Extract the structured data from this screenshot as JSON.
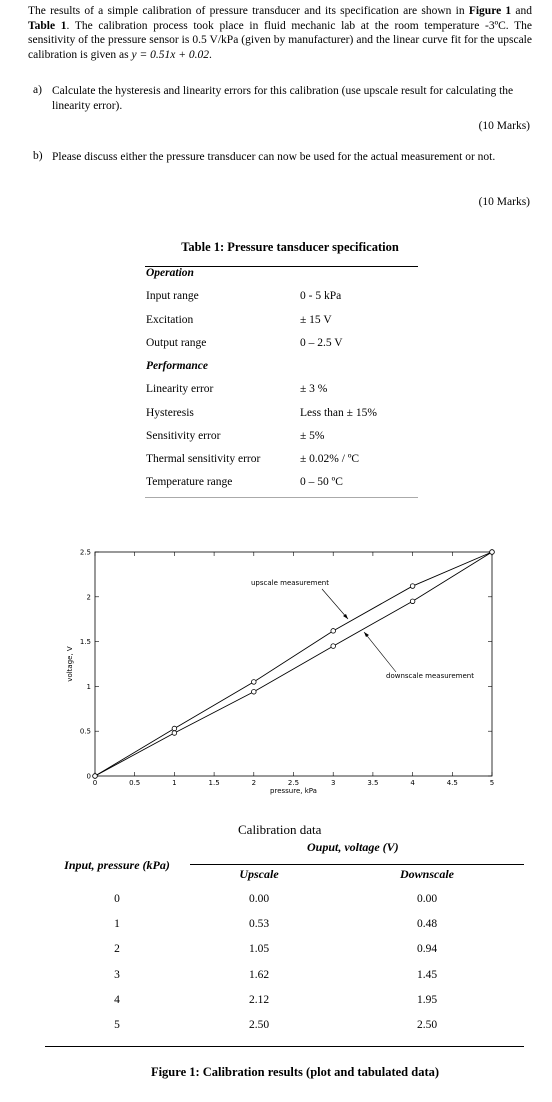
{
  "intro": [
    "The results of a simple calibration of pressure transducer and its specification are shown in ",
    "Figure 1",
    " and ",
    "Table 1",
    ". The calibration process took place in fluid mechanic lab at the room temperature -3ºC. The sensitivity of the pressure sensor is 0.5 V/kPa (given by manufacturer) and the linear curve fit for the upscale calibration is given as ",
    "y = 0.51x + 0.02",
    "."
  ],
  "questions": [
    {
      "label": "a)",
      "text": "Calculate the hysteresis and linearity errors for this calibration (use upscale result for calculating the linearity error).",
      "marks": "(10 Marks)"
    },
    {
      "label": "b)",
      "text": "Please discuss either the pressure transducer can now be used for the actual measurement or not.",
      "marks": "(10 Marks)"
    }
  ],
  "table1": {
    "title": "Table 1: Pressure tansducer specification",
    "sections": [
      {
        "heading": "Operation",
        "rows": [
          [
            "Input range",
            "0 - 5 kPa"
          ],
          [
            "Excitation",
            "± 15 V"
          ],
          [
            "Output range",
            "0 – 2.5 V"
          ]
        ]
      },
      {
        "heading": "Performance",
        "rows": [
          [
            "Linearity error",
            "± 3 %"
          ],
          [
            "Hysteresis",
            "Less than ± 15%"
          ],
          [
            "Sensitivity error",
            "± 5%"
          ],
          [
            "Thermal sensitivity error",
            "± 0.02% / ºC"
          ],
          [
            "Temperature range",
            "0 – 50 ºC"
          ]
        ]
      }
    ]
  },
  "chart_data": {
    "type": "line",
    "x": [
      0,
      1,
      2,
      3,
      4,
      5
    ],
    "series": [
      {
        "name": "upscale",
        "color": "#000000",
        "values": [
          0,
          0.53,
          1.05,
          1.62,
          2.12,
          2.5
        ]
      },
      {
        "name": "downscale",
        "color": "#000000",
        "values": [
          0,
          0.48,
          0.94,
          1.45,
          1.95,
          2.5
        ]
      }
    ],
    "xlabel": "pressure, kPa",
    "ylabel": "voltage, V",
    "xlim": [
      0,
      5
    ],
    "xticks": [
      0,
      0.5,
      1,
      1.5,
      2,
      2.5,
      3,
      3.5,
      4,
      4.5,
      5
    ],
    "ylim": [
      0,
      2.5
    ],
    "yticks": [
      0,
      0.5,
      1,
      1.5,
      2,
      2.5
    ],
    "annotations": [
      "upscale measurement",
      "downscale measurement"
    ]
  },
  "table2": {
    "title": "Calibration data",
    "group_header": "Ouput, voltage (V)",
    "headers": [
      "Input, pressure (kPa)",
      "Upscale",
      "Downscale"
    ],
    "rows": [
      [
        "0",
        "0.00",
        "0.00"
      ],
      [
        "1",
        "0.53",
        "0.48"
      ],
      [
        "2",
        "1.05",
        "0.94"
      ],
      [
        "3",
        "1.62",
        "1.45"
      ],
      [
        "4",
        "2.12",
        "1.95"
      ],
      [
        "5",
        "2.50",
        "2.50"
      ]
    ]
  },
  "caption": "Figure 1: Calibration results (plot and tabulated data)"
}
